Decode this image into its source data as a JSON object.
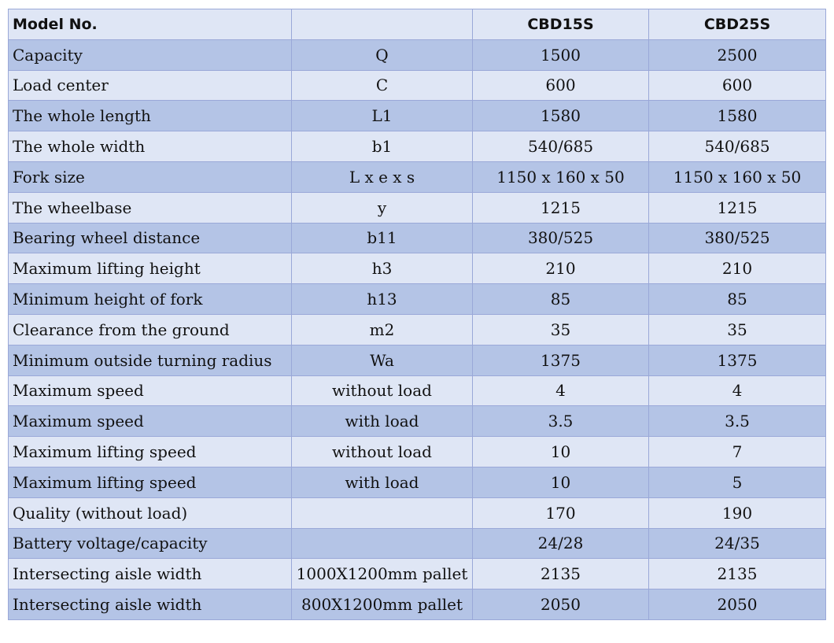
{
  "header": {
    "model_label": "Model No.",
    "symbol_label": "",
    "col_a": "CBD15S",
    "col_b": "CBD25S"
  },
  "rows": [
    {
      "name": "Capacity",
      "symbol": "Q",
      "a": "1500",
      "b": "2500"
    },
    {
      "name": "Load center",
      "symbol": "C",
      "a": "600",
      "b": "600"
    },
    {
      "name": "The whole length",
      "symbol": "L1",
      "a": "1580",
      "b": "1580"
    },
    {
      "name": "The whole width",
      "symbol": "b1",
      "a": "540/685",
      "b": "540/685"
    },
    {
      "name": "Fork size",
      "symbol": "L x e x s",
      "a": "1150 x 160 x 50",
      "b": "1150 x 160 x 50"
    },
    {
      "name": "The wheelbase",
      "symbol": "y",
      "a": "1215",
      "b": "1215"
    },
    {
      "name": "Bearing wheel distance",
      "symbol": "b11",
      "a": "380/525",
      "b": "380/525"
    },
    {
      "name": "Maximum lifting height",
      "symbol": "h3",
      "a": "210",
      "b": "210"
    },
    {
      "name": "Minimum height of fork",
      "symbol": "h13",
      "a": "85",
      "b": "85"
    },
    {
      "name": "Clearance from the ground",
      "symbol": "m2",
      "a": "35",
      "b": "35"
    },
    {
      "name": "Minimum outside turning radius",
      "symbol": "Wa",
      "a": "1375",
      "b": "1375"
    },
    {
      "name": "Maximum speed",
      "symbol": "without load",
      "a": "4",
      "b": "4"
    },
    {
      "name": "Maximum speed",
      "symbol": "with load",
      "a": "3.5",
      "b": "3.5"
    },
    {
      "name": "Maximum lifting speed",
      "symbol": "without load",
      "a": "10",
      "b": "7"
    },
    {
      "name": "Maximum lifting speed",
      "symbol": "with load",
      "a": "10",
      "b": "5"
    },
    {
      "name": "Quality (without load)",
      "symbol": "",
      "a": "170",
      "b": "190"
    },
    {
      "name": "Battery voltage/capacity",
      "symbol": "",
      "a": "24/28",
      "b": "24/35"
    },
    {
      "name": "Intersecting aisle width",
      "symbol": "1000X1200mm pallet",
      "a": "2135",
      "b": "2135"
    },
    {
      "name": "Intersecting aisle width",
      "symbol": "800X1200mm pallet",
      "a": "2050",
      "b": "2050"
    }
  ],
  "colors": {
    "row_light": "#dfe6f5",
    "row_dark": "#b4c4e6",
    "border": "#9aa8d8"
  }
}
